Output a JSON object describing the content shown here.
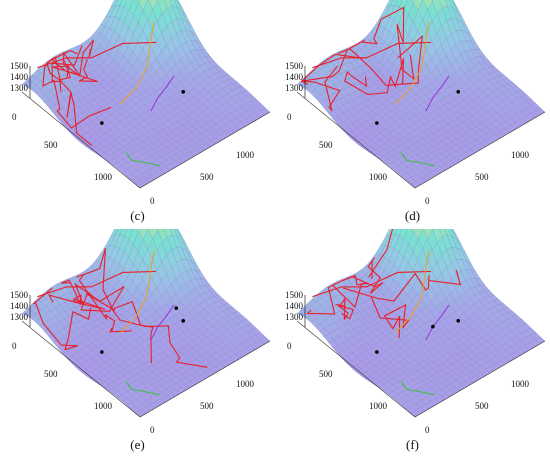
{
  "chart_data": [
    {
      "type": "surface",
      "panel_label": "(c)",
      "z_ticks": [
        "1500",
        "1400",
        "1300"
      ],
      "y_ticks": [
        "0",
        "500",
        "1000"
      ],
      "x_ticks": [
        "0",
        "500",
        "1000"
      ],
      "colors": {
        "route": "#e8202a",
        "branch_a": "#9b30d9",
        "branch_b": "#f0a020",
        "branch_c": "#2ec52e",
        "node": "#000000"
      },
      "markers": [
        {
          "u": 0.6,
          "v": 0.7
        },
        {
          "u": 0.48,
          "v": 0.18
        }
      ]
    },
    {
      "type": "surface",
      "panel_label": "(d)",
      "z_ticks": [
        "1500",
        "1400",
        "1300"
      ],
      "y_ticks": [
        "0",
        "500",
        "1000"
      ],
      "x_ticks": [
        "0",
        "500",
        "1000"
      ],
      "colors": {
        "route": "#e8202a",
        "branch_a": "#9b30d9",
        "branch_b": "#f0a020",
        "branch_c": "#2ec52e",
        "node": "#000000"
      },
      "markers": [
        {
          "u": 0.6,
          "v": 0.7
        },
        {
          "u": 0.48,
          "v": 0.18
        }
      ]
    },
    {
      "type": "surface",
      "panel_label": "(e)",
      "z_ticks": [
        "1500",
        "1400",
        "1300"
      ],
      "y_ticks": [
        "0",
        "500",
        "1000"
      ],
      "x_ticks": [
        "0",
        "500",
        "1000"
      ],
      "colors": {
        "route": "#e8202a",
        "branch_a": "#9b30d9",
        "branch_b": "#f0a020",
        "branch_c": "#2ec52e",
        "node": "#000000"
      },
      "markers": [
        {
          "u": 0.6,
          "v": 0.7
        },
        {
          "u": 0.48,
          "v": 0.18
        },
        {
          "u": 0.52,
          "v": 0.72
        }
      ]
    },
    {
      "type": "surface",
      "panel_label": "(f)",
      "z_ticks": [
        "1500",
        "1400",
        "1300"
      ],
      "y_ticks": [
        "0",
        "500",
        "1000"
      ],
      "x_ticks": [
        "0",
        "500",
        "1000"
      ],
      "colors": {
        "route": "#e8202a",
        "branch_a": "#9b30d9",
        "branch_b": "#f0a020",
        "branch_c": "#2ec52e",
        "node": "#000000"
      },
      "markers": [
        {
          "u": 0.6,
          "v": 0.7
        },
        {
          "u": 0.48,
          "v": 0.18
        },
        {
          "u": 0.55,
          "v": 0.55
        }
      ]
    }
  ]
}
